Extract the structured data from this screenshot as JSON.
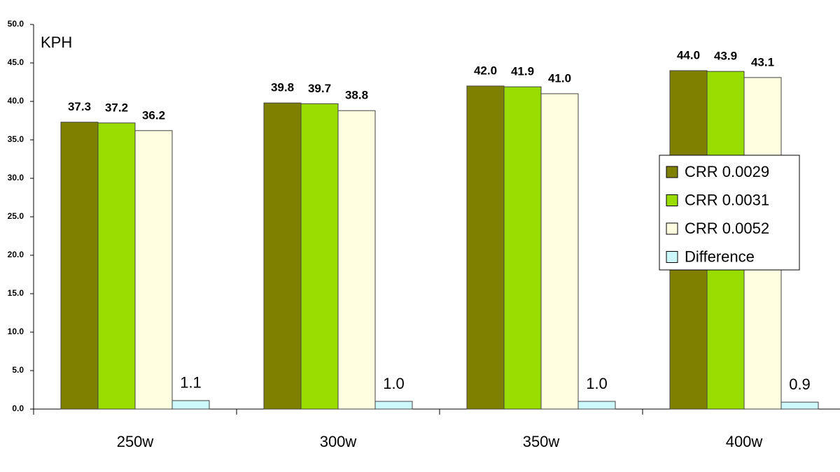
{
  "chart_data": {
    "type": "bar",
    "y_label": "KPH",
    "categories": [
      "250w",
      "300w",
      "350w",
      "400w"
    ],
    "series": [
      {
        "name": "CRR 0.0029",
        "color": "#808000",
        "values": [
          37.3,
          39.8,
          42.0,
          44.0
        ],
        "value_labels": [
          "37.3",
          "39.8",
          "42.0",
          "44.0"
        ]
      },
      {
        "name": "CRR 0.0031",
        "color": "#99dd00",
        "values": [
          37.2,
          39.7,
          41.9,
          43.9
        ],
        "value_labels": [
          "37.2",
          "39.7",
          "41.9",
          "43.9"
        ]
      },
      {
        "name": "CRR 0.0052",
        "color": "#fdfde0",
        "values": [
          36.2,
          38.8,
          41.0,
          43.1
        ],
        "value_labels": [
          "36.2",
          "38.8",
          "41.0",
          "43.1"
        ]
      },
      {
        "name": "Difference",
        "color": "#ccf8fc",
        "values": [
          1.1,
          1.0,
          1.0,
          0.9
        ],
        "value_labels": [
          "1.1",
          "1.0",
          "1.0",
          "0.9"
        ]
      }
    ],
    "ylim": [
      0,
      50
    ],
    "yticks": [
      {
        "value": 0,
        "label": "0.0"
      },
      {
        "value": 5,
        "label": "5.0"
      },
      {
        "value": 10,
        "label": "10.0"
      },
      {
        "value": 15,
        "label": "15.0"
      },
      {
        "value": 20,
        "label": "20.0"
      },
      {
        "value": 25,
        "label": "25.0"
      },
      {
        "value": 30,
        "label": "30.0"
      },
      {
        "value": 35,
        "label": "35.0"
      },
      {
        "value": 40,
        "label": "40.0"
      },
      {
        "value": 45,
        "label": "45.0"
      },
      {
        "value": 50,
        "label": "50.0"
      }
    ],
    "grid": false,
    "legend": "right"
  }
}
